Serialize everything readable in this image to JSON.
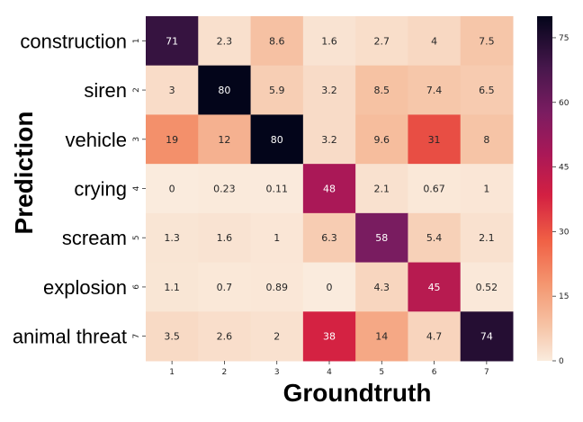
{
  "chart_data": {
    "type": "heatmap",
    "xlabel": "Groundtruth",
    "ylabel": "Prediction",
    "x_tick_labels": [
      "1",
      "2",
      "3",
      "4",
      "5",
      "6",
      "7"
    ],
    "y_tick_labels": [
      "1",
      "2",
      "3",
      "4",
      "5",
      "6",
      "7"
    ],
    "row_names": [
      "construction",
      "siren",
      "vehicle",
      "crying",
      "scream",
      "explosion",
      "animal threat"
    ],
    "values": [
      [
        71,
        2.3,
        8.6,
        1.6,
        2.7,
        4,
        7.5
      ],
      [
        3,
        80,
        5.9,
        3.2,
        8.5,
        7.4,
        6.5
      ],
      [
        19,
        12,
        80,
        3.2,
        9.6,
        31,
        8
      ],
      [
        0,
        0.23,
        0.11,
        48,
        2.1,
        0.67,
        1
      ],
      [
        1.3,
        1.6,
        1,
        6.3,
        58,
        5.4,
        2.1
      ],
      [
        1.1,
        0.7,
        0.89,
        0,
        4.3,
        45,
        0.52
      ],
      [
        3.5,
        2.6,
        2,
        38,
        14,
        4.7,
        74
      ]
    ],
    "colorbar": {
      "min": 0,
      "max": 80,
      "ticks": [
        0,
        15,
        30,
        45,
        60,
        75
      ],
      "colormap": "rocket_r"
    }
  }
}
